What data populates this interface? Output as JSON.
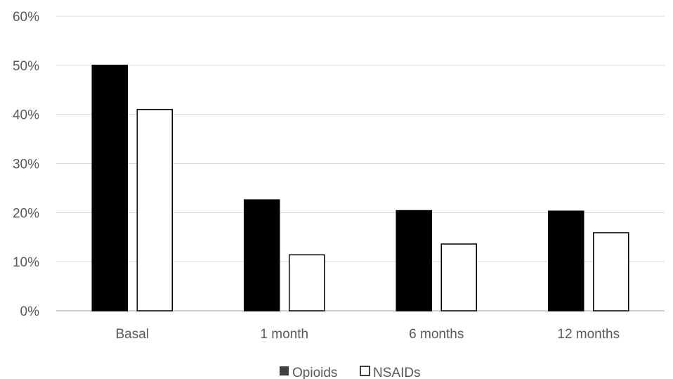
{
  "chart_data": {
    "type": "bar",
    "categories": [
      "Basal",
      "1 month",
      "6 months",
      "12 months"
    ],
    "series": [
      {
        "name": "Opioids",
        "values": [
          50.0,
          22.6,
          20.4,
          20.3
        ],
        "fill": "#000000",
        "stroke": "#000000"
      },
      {
        "name": "NSAIDs",
        "values": [
          41.0,
          11.4,
          13.6,
          15.9
        ],
        "fill": "#ffffff",
        "stroke": "#000000"
      }
    ],
    "y_ticks": [
      {
        "value": 0,
        "label": "0%"
      },
      {
        "value": 10,
        "label": "10%"
      },
      {
        "value": 20,
        "label": "20%"
      },
      {
        "value": 30,
        "label": "30%"
      },
      {
        "value": 40,
        "label": "40%"
      },
      {
        "value": 50,
        "label": "50%"
      },
      {
        "value": 60,
        "label": "60%"
      }
    ],
    "ylim": [
      0,
      60
    ],
    "grid": true,
    "grid_color": "#d9d9d9",
    "legend_position": "bottom",
    "title": "",
    "xlabel": "",
    "ylabel": ""
  }
}
